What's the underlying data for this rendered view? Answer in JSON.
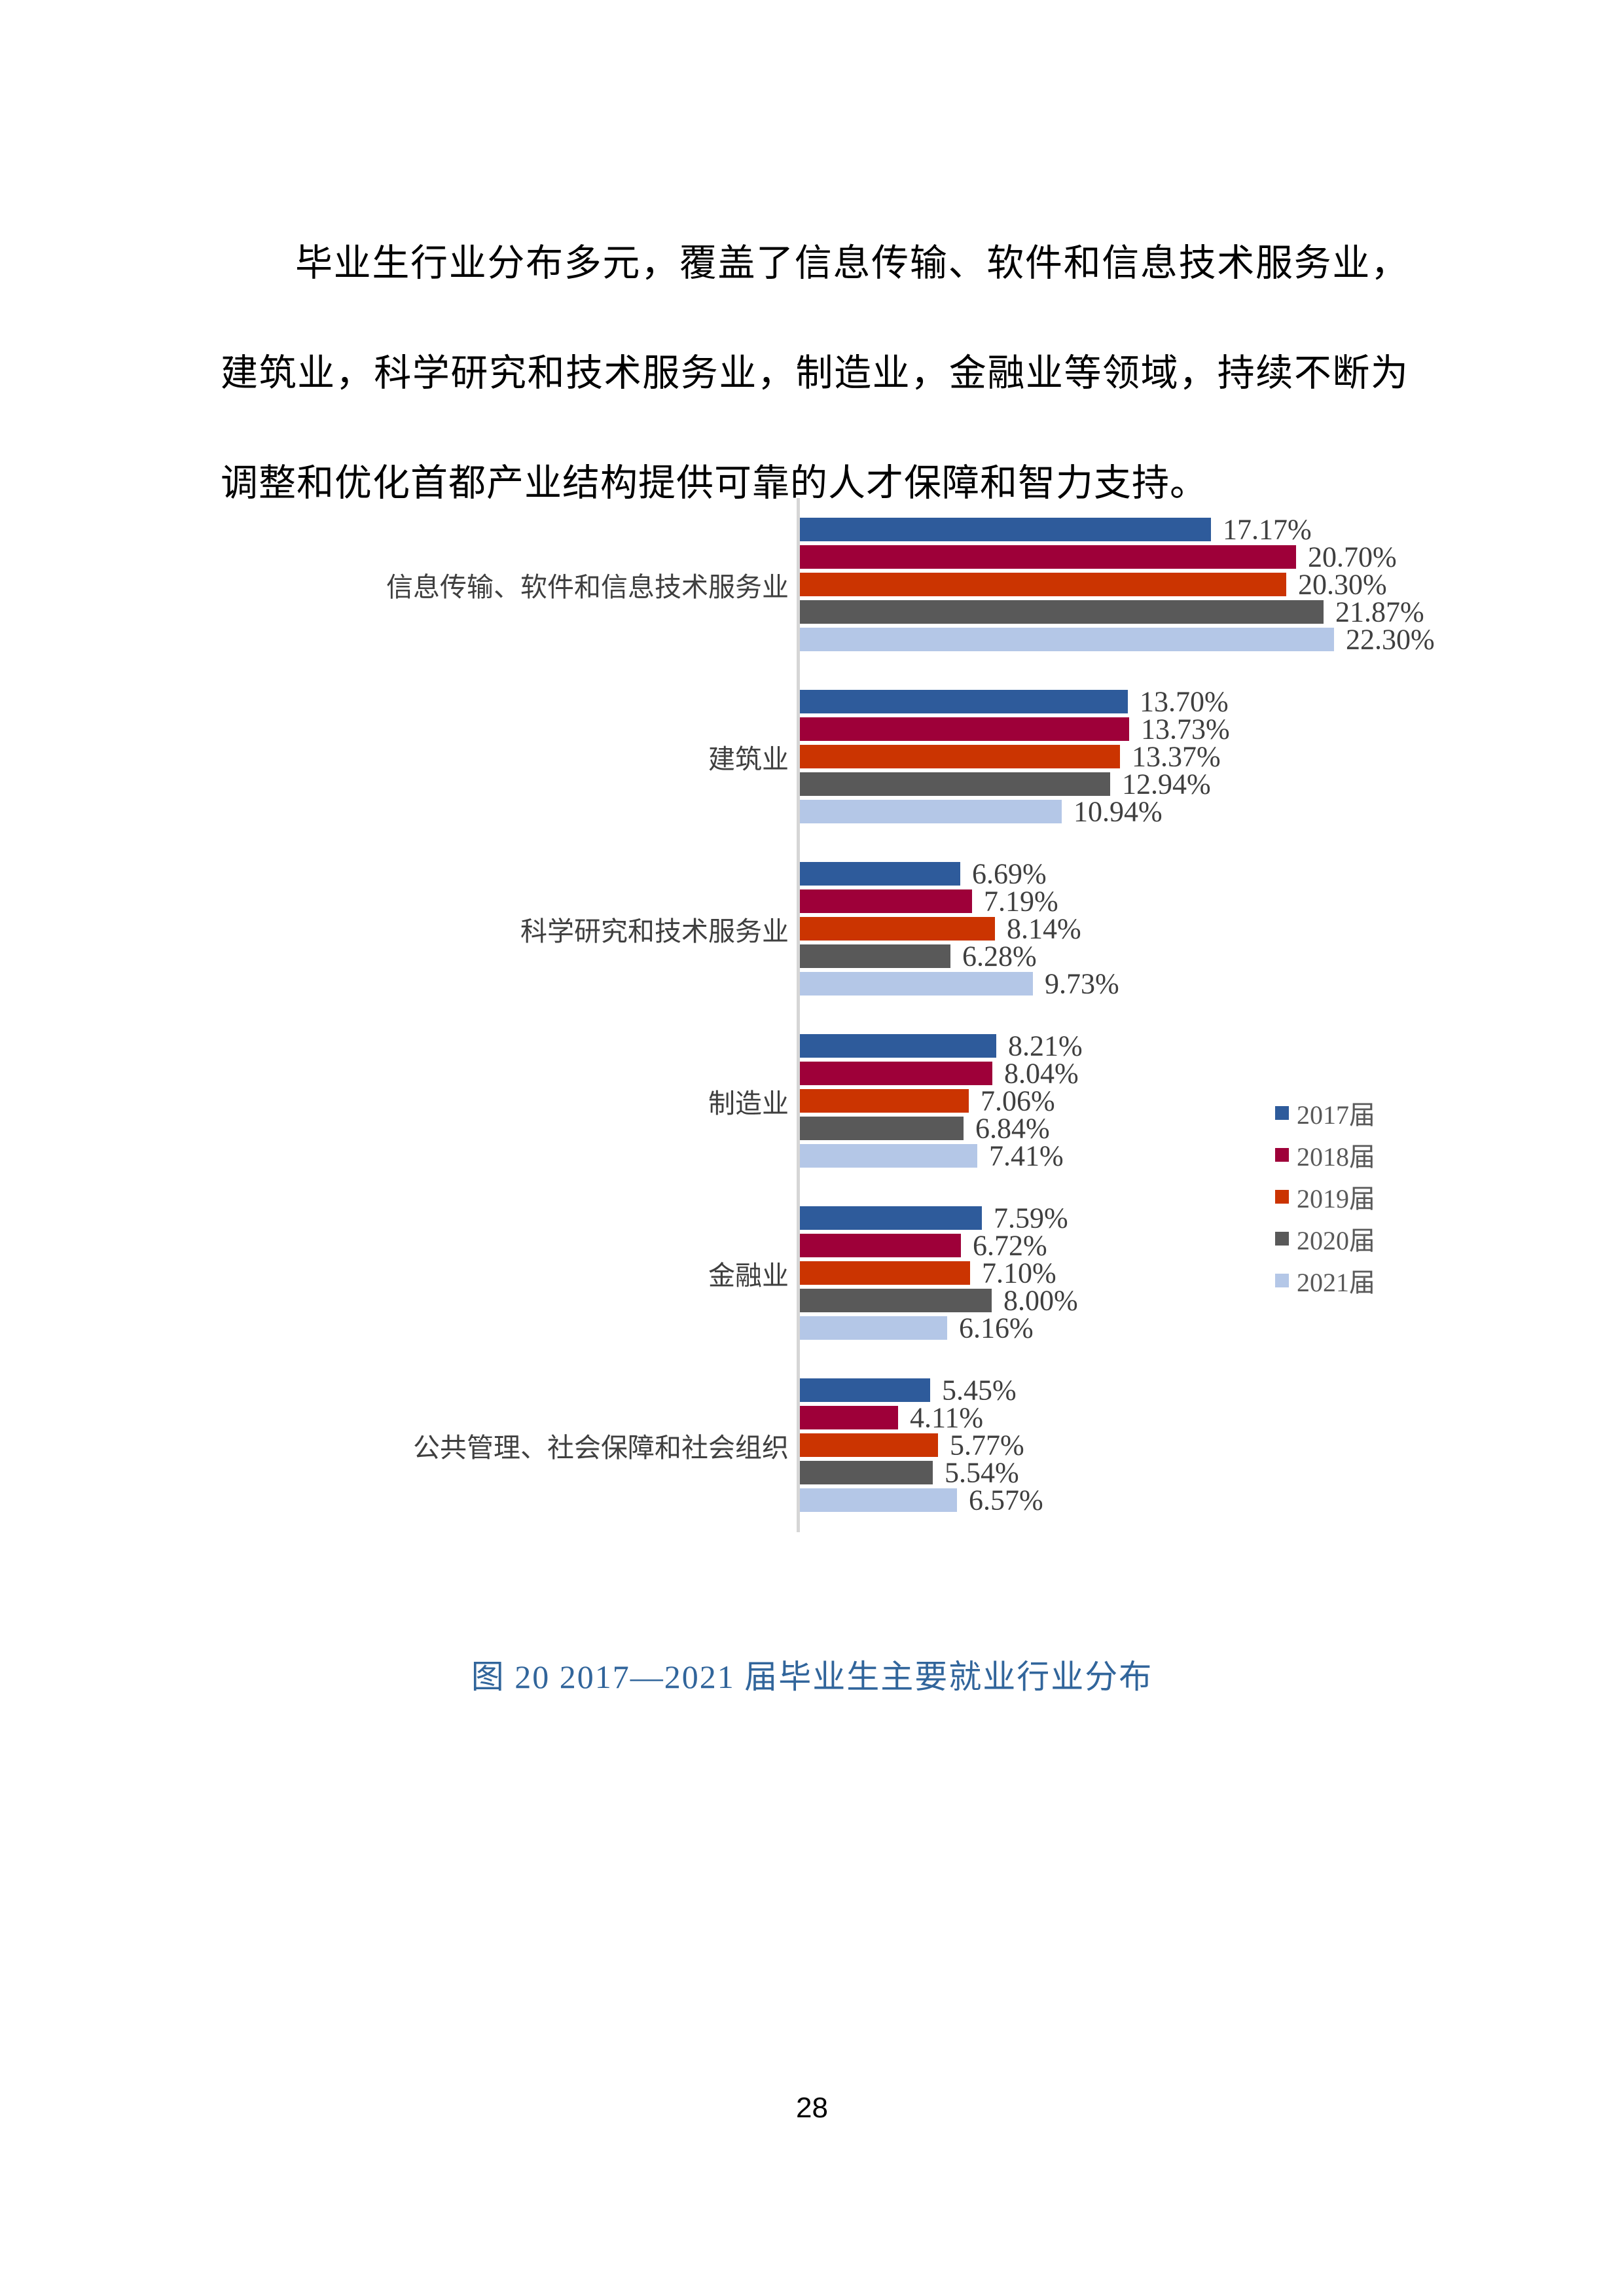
{
  "page": {
    "paragraph": "毕业生行业分布多元，覆盖了信息传输、软件和信息技术服务业，建筑业，科学研究和技术服务业，制造业，金融业等领域，持续不断为调整和优化首都产业结构提供可靠的人才保障和智力支持。",
    "caption": "图 20  2017—2021 届毕业生主要就业行业分布",
    "page_number": "28"
  },
  "chart_data": {
    "type": "bar",
    "orientation": "horizontal",
    "title": "",
    "xlabel": "",
    "ylabel": "",
    "xlim": [
      0,
      25
    ],
    "grid": false,
    "legend_position": "right",
    "axis_color": "#d6d6d6",
    "value_label_format": "0.00%",
    "categories": [
      "信息传输、软件和信息技术服务业",
      "建筑业",
      "科学研究和技术服务业",
      "制造业",
      "金融业",
      "公共管理、社会保障和社会组织"
    ],
    "series": [
      {
        "name": "2017届",
        "color": "#2e5b9b",
        "values": [
          17.17,
          13.7,
          6.69,
          8.21,
          7.59,
          5.45
        ]
      },
      {
        "name": "2018届",
        "color": "#9e0039",
        "values": [
          20.7,
          13.73,
          7.19,
          8.04,
          6.72,
          4.11
        ]
      },
      {
        "name": "2019届",
        "color": "#cb3401",
        "values": [
          20.3,
          13.37,
          8.14,
          7.06,
          7.1,
          5.77
        ]
      },
      {
        "name": "2020届",
        "color": "#595959",
        "values": [
          21.87,
          12.94,
          6.28,
          6.84,
          8.0,
          5.54
        ]
      },
      {
        "name": "2021届",
        "color": "#b4c7e7",
        "values": [
          22.3,
          10.94,
          9.73,
          7.41,
          6.16,
          6.57
        ]
      }
    ]
  }
}
